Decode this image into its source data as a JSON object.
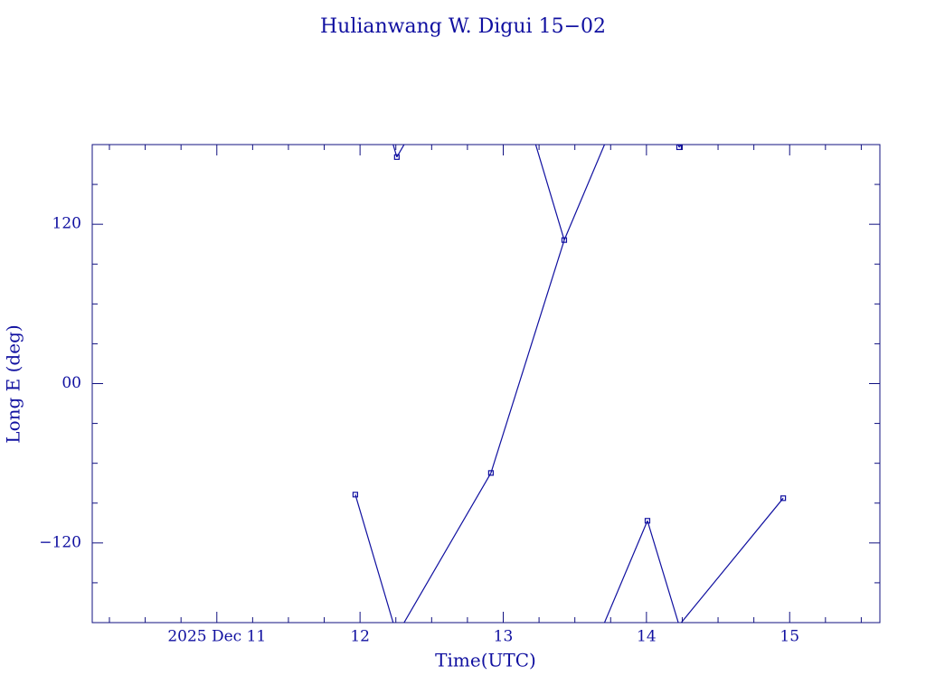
{
  "chart_data": {
    "type": "line",
    "title": "Hulianwang W. Digui 15−02",
    "xlabel": "Time(UTC)",
    "ylabel": "Long E (deg)",
    "x": [
      11.967,
      12.257,
      12.914,
      13.426,
      14.007,
      14.228,
      14.955
    ],
    "series": [
      {
        "color": "#1010a0",
        "values": [
          -83.6,
          170.6,
          -67.3,
          108.1,
          -103.3,
          178,
          -86.3
        ]
      }
    ],
    "xlim": [
      10.13,
      15.63
    ],
    "xticks": [
      {
        "value": 11,
        "label": "2025 Dec 11"
      },
      12,
      13,
      14,
      15
    ],
    "xminorticks": [
      10.25,
      10.5,
      10.75,
      11.25,
      11.5,
      11.75,
      12.25,
      12.5,
      12.75,
      13.25,
      13.5,
      13.75,
      14.25,
      14.5,
      14.75,
      15.25,
      15.5
    ],
    "ylim": [
      -180,
      180
    ],
    "yticks": [
      {
        "value": -120,
        "label": "−120"
      },
      {
        "value": 0,
        "label": "00"
      },
      120
    ],
    "yminorticks": [
      -150,
      -90,
      -60,
      -30,
      30,
      60,
      90,
      150
    ]
  }
}
